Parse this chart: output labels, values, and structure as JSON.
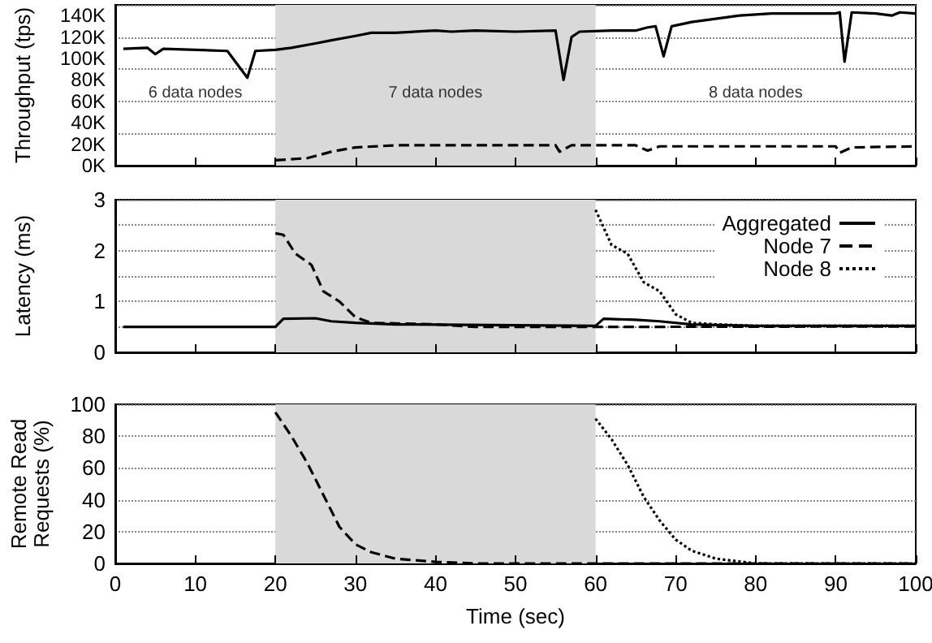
{
  "chart_data": [
    {
      "type": "line",
      "ylabel": "Throughput (tps)",
      "xlim": [
        0,
        100
      ],
      "xticks": [
        0,
        10,
        20,
        30,
        40,
        50,
        60,
        70,
        80,
        90,
        100
      ],
      "ylim": [
        0,
        150000
      ],
      "yticks": [
        {
          "value": 0,
          "label": "0K"
        },
        {
          "value": 20000,
          "label": "20K"
        },
        {
          "value": 40000,
          "label": "40K"
        },
        {
          "value": 60000,
          "label": "60K"
        },
        {
          "value": 80000,
          "label": "80K"
        },
        {
          "value": 100000,
          "label": "100K"
        },
        {
          "value": 120000,
          "label": "120K"
        },
        {
          "value": 140000,
          "label": "140K"
        }
      ],
      "tick_labels": "y",
      "grid": "y",
      "marker": "none",
      "bands": [
        {
          "axis": "x",
          "from": 20,
          "to": 60,
          "color": "#d9d9d9"
        }
      ],
      "annotations": [
        "6 data nodes",
        "7 data nodes",
        "8 data nodes"
      ],
      "series": [
        {
          "color": "#000000",
          "line_style": "solid",
          "x": [
            1,
            4,
            5,
            6,
            10,
            14,
            16.5,
            17.5,
            20,
            22,
            25,
            27,
            30,
            32,
            35,
            40,
            42,
            45,
            50,
            55,
            56,
            57,
            58,
            62,
            65,
            66.5,
            67.5,
            68.5,
            69.5,
            72,
            75,
            78,
            82,
            85,
            90,
            90.5,
            91.1,
            92,
            95,
            97,
            98,
            100
          ],
          "values": [
            109000,
            110000,
            104000,
            109000,
            108000,
            107000,
            82000,
            107000,
            108000,
            110000,
            114000,
            117000,
            121000,
            124000,
            124000,
            126000,
            125000,
            126000,
            125000,
            126000,
            80000,
            120000,
            125000,
            126000,
            126000,
            129000,
            130000,
            102000,
            130000,
            134000,
            137000,
            140000,
            142000,
            142000,
            142000,
            143000,
            97000,
            143000,
            142000,
            140000,
            143000,
            142000
          ]
        },
        {
          "color": "#000000",
          "line_style": "dashed",
          "x": [
            20,
            24,
            27,
            30,
            35,
            40,
            55,
            55.5,
            57,
            65,
            66.5,
            68,
            90,
            90.5,
            92,
            100
          ],
          "values": [
            5000,
            7000,
            13000,
            17000,
            19000,
            19000,
            19000,
            13000,
            19000,
            19000,
            14000,
            18000,
            18000,
            12000,
            17000,
            18000
          ]
        }
      ]
    },
    {
      "type": "line",
      "ylabel": "Latency (ms)",
      "xlim": [
        0,
        100
      ],
      "xticks": [
        0,
        10,
        20,
        30,
        40,
        50,
        60,
        70,
        80,
        90,
        100
      ],
      "ylim": [
        0,
        3
      ],
      "yticks": [
        0,
        1,
        2,
        3
      ],
      "tick_labels": "y",
      "grid": "y",
      "marker": "none",
      "legend": "top right",
      "bands": [
        {
          "axis": "x",
          "from": 20,
          "to": 60,
          "color": "#d9d9d9"
        }
      ],
      "series": [
        {
          "name": "Aggregated",
          "color": "#000000",
          "line_style": "solid",
          "x": [
            1,
            20,
            21,
            25,
            27,
            30,
            35,
            60,
            61,
            65,
            68,
            72,
            80,
            100
          ],
          "values": [
            0.5,
            0.5,
            0.66,
            0.67,
            0.61,
            0.58,
            0.55,
            0.52,
            0.66,
            0.64,
            0.61,
            0.55,
            0.52,
            0.52
          ]
        },
        {
          "name": "Node 7",
          "color": "#000000",
          "line_style": "dashed",
          "x": [
            20,
            21,
            22.5,
            24.5,
            26,
            28,
            30,
            32,
            40,
            45,
            60,
            100
          ],
          "values": [
            2.34,
            2.31,
            1.94,
            1.72,
            1.2,
            1.0,
            0.69,
            0.58,
            0.55,
            0.5,
            0.5,
            0.51
          ]
        },
        {
          "name": "Node 8",
          "color": "#000000",
          "line_style": "dotted",
          "x": [
            60,
            62,
            64,
            66,
            68,
            70,
            72,
            75,
            80,
            100
          ],
          "values": [
            2.8,
            2.11,
            1.94,
            1.38,
            1.2,
            0.75,
            0.58,
            0.55,
            0.52,
            0.52
          ]
        }
      ]
    },
    {
      "type": "line",
      "xlabel": "Time (sec)",
      "ylabel": "Remote Read Requests (%)",
      "xlim": [
        0,
        100
      ],
      "xticks": [
        0,
        10,
        20,
        30,
        40,
        50,
        60,
        70,
        80,
        90,
        100
      ],
      "ylim": [
        0,
        100
      ],
      "yticks": [
        0,
        20,
        40,
        60,
        80,
        100
      ],
      "grid": "y",
      "marker": "none",
      "bands": [
        {
          "axis": "x",
          "from": 20,
          "to": 60,
          "color": "#d9d9d9"
        }
      ],
      "series": [
        {
          "color": "#000000",
          "line_style": "dashed",
          "x": [
            20,
            22,
            24,
            26,
            28,
            30,
            32,
            35,
            40,
            45,
            100
          ],
          "values": [
            95,
            80,
            63,
            43,
            23,
            12,
            7,
            3,
            1,
            0,
            0
          ]
        },
        {
          "color": "#000000",
          "line_style": "dotted",
          "x": [
            60,
            62,
            64,
            66,
            68,
            70,
            72,
            75,
            80,
            100
          ],
          "values": [
            91,
            78,
            62,
            42,
            27,
            15,
            8,
            3,
            0,
            0
          ]
        }
      ]
    }
  ]
}
